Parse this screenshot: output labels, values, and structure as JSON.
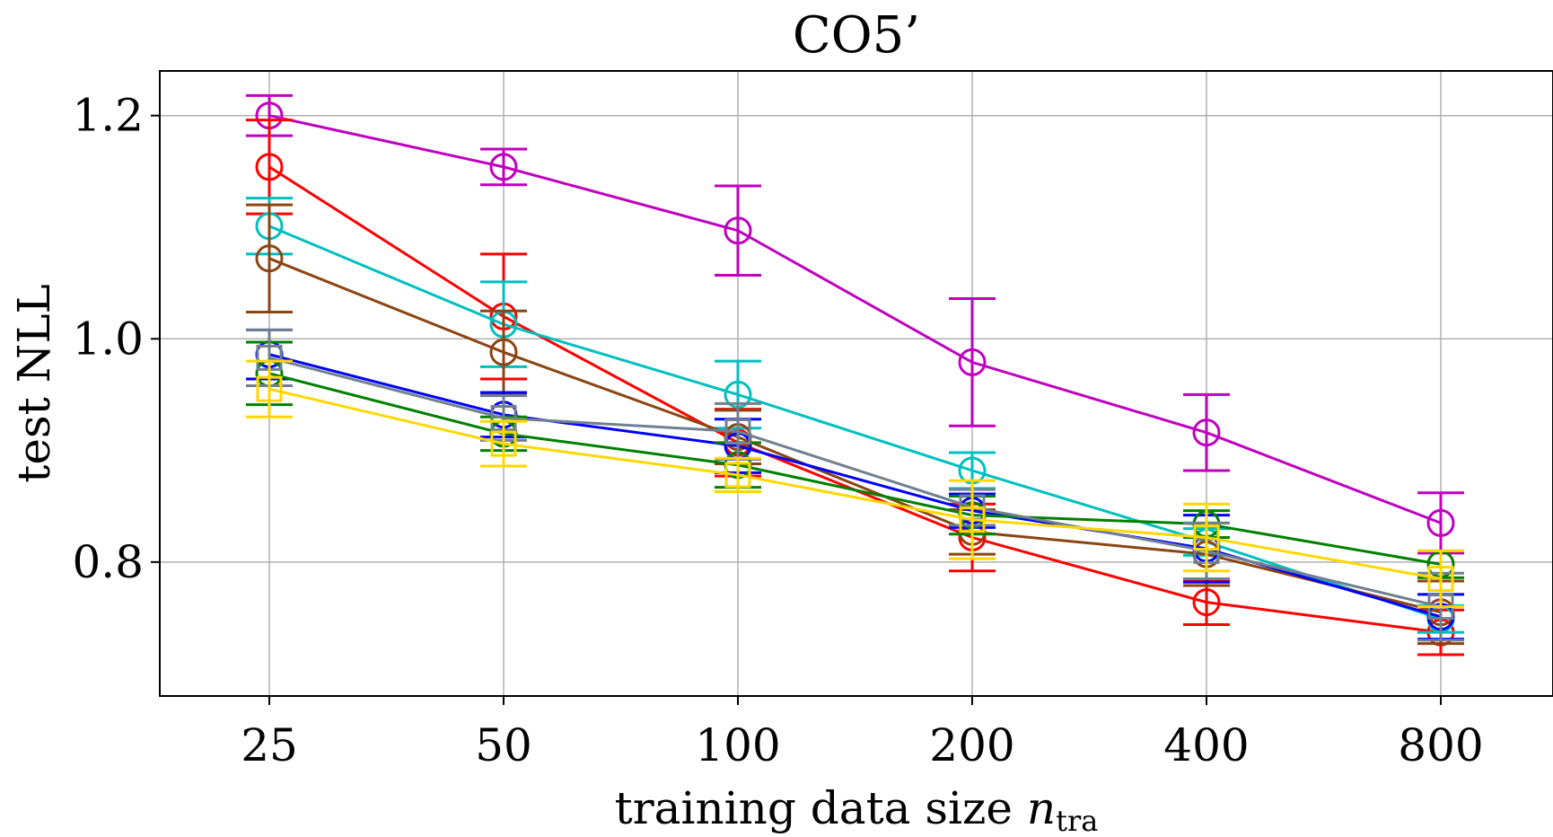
{
  "chart_data": {
    "type": "line",
    "title": "CO5’",
    "xlabel": "training data size",
    "xlabel_var": "n",
    "xlabel_sub": "tra",
    "ylabel": "test NLL",
    "categories": [
      "25",
      "50",
      "100",
      "200",
      "400",
      "800"
    ],
    "y_ticks": [
      "0.8",
      "1.0",
      "1.2"
    ],
    "y_tick_values": [
      0.8,
      1.0,
      1.2
    ],
    "ylim": [
      0.68,
      1.24
    ],
    "grid": true,
    "series": [
      {
        "name": "magenta-circle",
        "color": "#bf00bf",
        "marker": "circle",
        "values": [
          1.2,
          1.154,
          1.097,
          0.979,
          0.916,
          0.835
        ],
        "errors": [
          0.018,
          0.016,
          0.04,
          0.057,
          0.034,
          0.027
        ]
      },
      {
        "name": "red-circle",
        "color": "#ff0000",
        "marker": "circle",
        "values": [
          1.154,
          1.02,
          0.907,
          0.822,
          0.764,
          0.737
        ],
        "errors": [
          0.042,
          0.056,
          0.03,
          0.03,
          0.02,
          0.02
        ]
      },
      {
        "name": "cyan-circle",
        "color": "#00bfbf",
        "marker": "circle",
        "values": [
          1.101,
          1.013,
          0.95,
          0.882,
          0.818,
          0.749
        ],
        "errors": [
          0.025,
          0.038,
          0.03,
          0.016,
          0.012,
          0.012
        ]
      },
      {
        "name": "brown-circle",
        "color": "#8b4513",
        "marker": "circle",
        "values": [
          1.072,
          0.988,
          0.912,
          0.827,
          0.807,
          0.755
        ],
        "errors": [
          0.048,
          0.037,
          0.024,
          0.02,
          0.028,
          0.028
        ]
      },
      {
        "name": "blue-circle",
        "color": "#0000ff",
        "marker": "circle",
        "values": [
          0.986,
          0.932,
          0.904,
          0.846,
          0.812,
          0.751
        ],
        "errors": [
          0.022,
          0.02,
          0.024,
          0.015,
          0.03,
          0.02
        ]
      },
      {
        "name": "green-circle",
        "color": "#008000",
        "marker": "circle",
        "values": [
          0.969,
          0.915,
          0.887,
          0.842,
          0.834,
          0.798
        ],
        "errors": [
          0.028,
          0.015,
          0.02,
          0.017,
          0.012,
          0.012
        ]
      },
      {
        "name": "gray-square",
        "color": "#708090",
        "marker": "square",
        "values": [
          0.983,
          0.929,
          0.917,
          0.849,
          0.81,
          0.76
        ],
        "errors": [
          0.025,
          0.02,
          0.025,
          0.016,
          0.025,
          0.03
        ]
      },
      {
        "name": "gold-square",
        "color": "#ffd700",
        "marker": "square",
        "values": [
          0.955,
          0.906,
          0.878,
          0.838,
          0.822,
          0.785
        ],
        "errors": [
          0.025,
          0.02,
          0.015,
          0.035,
          0.03,
          0.025
        ]
      }
    ]
  }
}
